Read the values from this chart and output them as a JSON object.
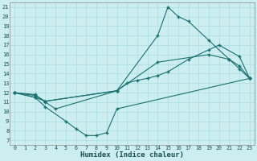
{
  "title": "",
  "xlabel": "Humidex (Indice chaleur)",
  "bg_color": "#cceef0",
  "grid_color": "#aadddd",
  "line_color": "#1a7070",
  "xlim": [
    -0.5,
    23.5
  ],
  "ylim": [
    6.5,
    21.5
  ],
  "xticks": [
    0,
    1,
    2,
    3,
    4,
    5,
    6,
    7,
    8,
    9,
    10,
    11,
    12,
    13,
    14,
    15,
    16,
    17,
    18,
    19,
    20,
    21,
    22,
    23
  ],
  "yticks": [
    7,
    8,
    9,
    10,
    11,
    12,
    13,
    14,
    15,
    16,
    17,
    18,
    19,
    20,
    21
  ],
  "line1_x": [
    0,
    2,
    3,
    4,
    10,
    14,
    15,
    16,
    17,
    19,
    21,
    22,
    23
  ],
  "line1_y": [
    12,
    11.8,
    11.0,
    10.3,
    12.2,
    18.0,
    21.0,
    20.0,
    19.5,
    17.5,
    15.5,
    14.5,
    13.5
  ],
  "line2_x": [
    0,
    2,
    3,
    10,
    11,
    12,
    13,
    14,
    15,
    17,
    19,
    20,
    22,
    23
  ],
  "line2_y": [
    12,
    11.5,
    11.1,
    12.2,
    13.0,
    13.3,
    13.5,
    13.8,
    14.2,
    15.5,
    16.5,
    17.0,
    15.8,
    13.5
  ],
  "line3_x": [
    0,
    2,
    3,
    5,
    6,
    7,
    8,
    9,
    10,
    23
  ],
  "line3_y": [
    12,
    11.5,
    10.5,
    9.0,
    8.2,
    7.5,
    7.5,
    7.8,
    10.3,
    13.5
  ],
  "line4_x": [
    0,
    2,
    3,
    10,
    14,
    19,
    21,
    22,
    23
  ],
  "line4_y": [
    12,
    11.7,
    11.1,
    12.2,
    15.2,
    16.0,
    15.5,
    14.8,
    13.5
  ]
}
